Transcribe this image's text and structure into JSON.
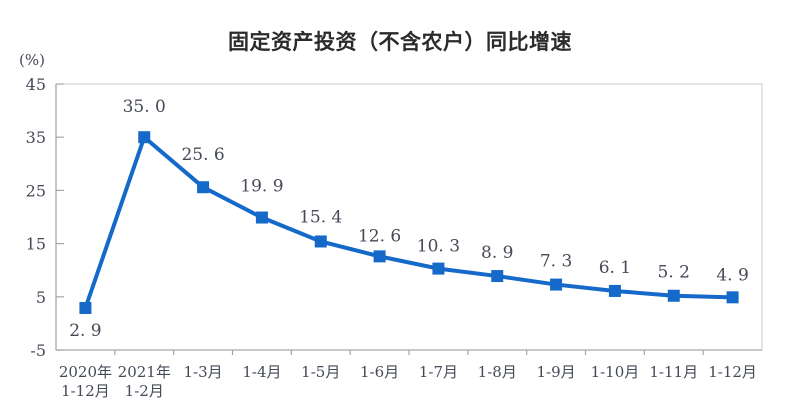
{
  "chart_data": {
    "type": "line",
    "title": "固定资产投资（不含农户）同比增速",
    "unit_label": "(%)",
    "xlabel": "",
    "ylabel": "(%)",
    "categories": [
      "2020年1-12月",
      "2021年1-2月",
      "1-3月",
      "1-4月",
      "1-5月",
      "1-6月",
      "1-7月",
      "1-8月",
      "1-9月",
      "1-10月",
      "1-11月",
      "1-12月"
    ],
    "category_display": [
      [
        "2020年",
        "1-12月"
      ],
      [
        "2021年",
        "1-2月"
      ],
      [
        "1-3月"
      ],
      [
        "1-4月"
      ],
      [
        "1-5月"
      ],
      [
        "1-6月"
      ],
      [
        "1-7月"
      ],
      [
        "1-8月"
      ],
      [
        "1-9月"
      ],
      [
        "1-10月"
      ],
      [
        "1-11月"
      ],
      [
        "1-12月"
      ]
    ],
    "series": [
      {
        "name": "固定资产投资（不含农户）同比增速",
        "values": [
          2.9,
          35.0,
          25.6,
          19.9,
          15.4,
          12.6,
          10.3,
          8.9,
          7.3,
          6.1,
          5.2,
          4.9
        ]
      }
    ],
    "data_labels": [
      "2. 9",
      "35. 0",
      "25. 6",
      "19. 9",
      "15. 4",
      "12. 6",
      "10. 3",
      "8. 9",
      "7. 3",
      "6. 1",
      "5. 2",
      "4. 9"
    ],
    "yticks": [
      45,
      35,
      25,
      15,
      5,
      -5
    ],
    "ylim": [
      -5,
      45
    ],
    "grid": false,
    "legend_position": "none",
    "marker": "square",
    "label_offsets": [
      28,
      -25,
      -27,
      -26,
      -19,
      -15,
      -17,
      -18,
      -18,
      -18,
      -18,
      -17
    ],
    "colors": {
      "line": "#1569C9",
      "marker": "#1569C9",
      "axis": "#A6A6A6",
      "plot_border": "#C9C9C9",
      "text": "#454a57",
      "title": "#2b2b2b"
    }
  }
}
